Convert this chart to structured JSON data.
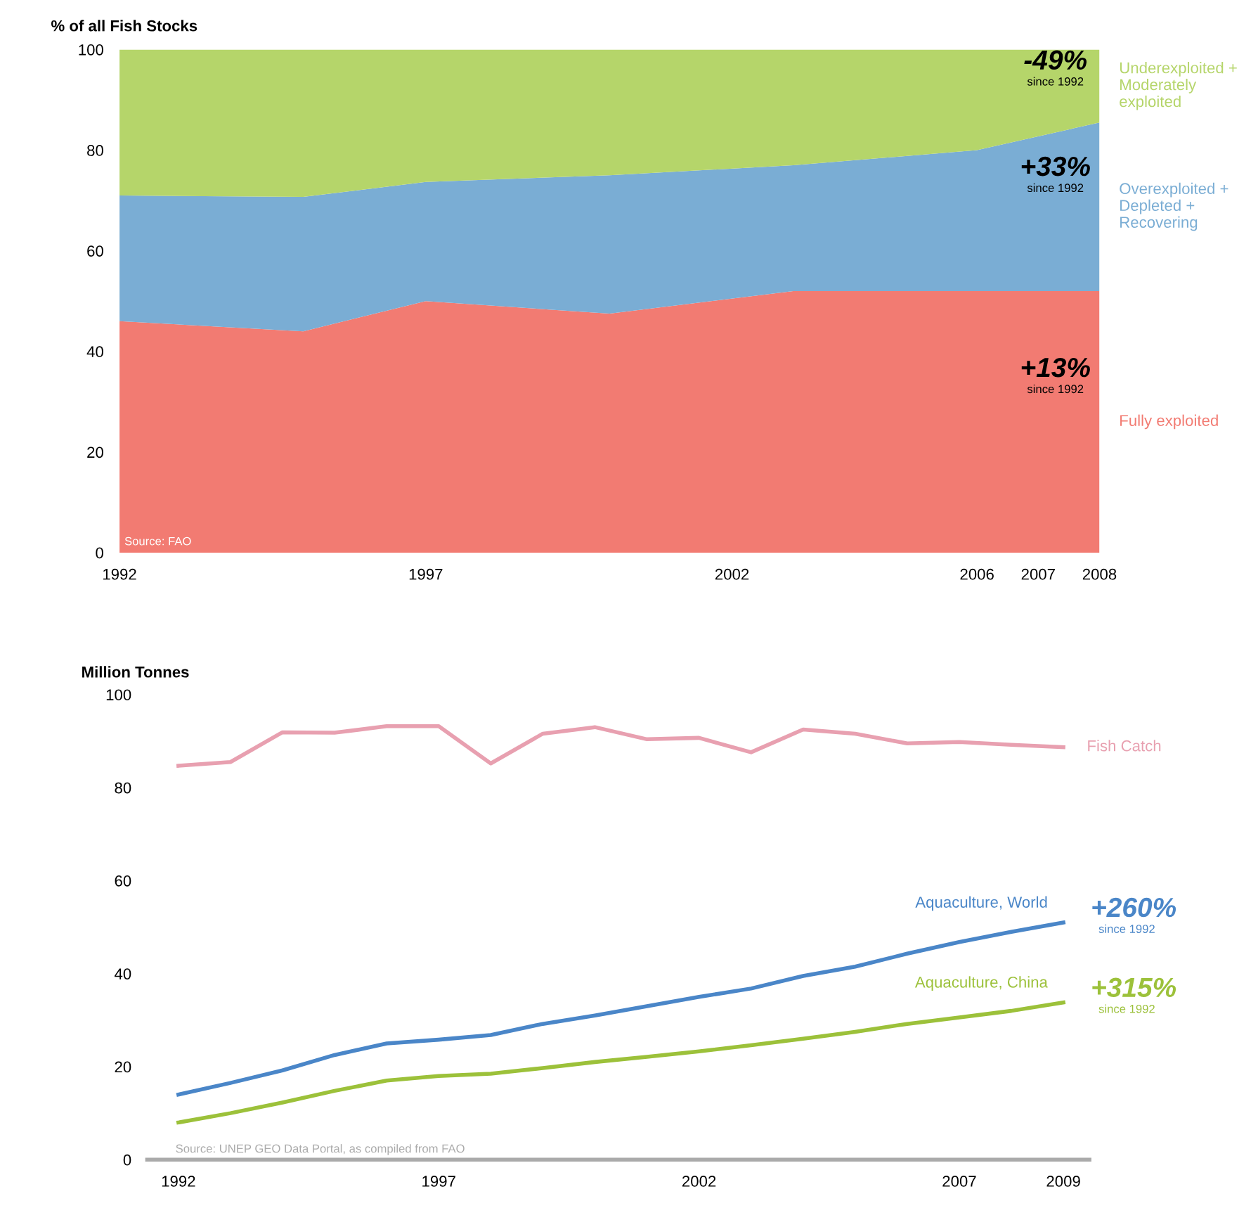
{
  "chart_data": [
    {
      "type": "area",
      "stacked": true,
      "ylabel": "% of all Fish Stocks",
      "x": [
        1992,
        1995,
        1997,
        2000,
        2003,
        2006,
        2008
      ],
      "series": [
        {
          "name": "Fully exploited",
          "color": "#f27b72",
          "values": [
            46,
            44,
            50,
            47.5,
            52,
            52,
            52
          ]
        },
        {
          "name": "Overexploited + Depleted + Recovering",
          "color": "#7aadd4",
          "values": [
            25,
            26.7,
            23.7,
            27.5,
            25,
            28,
            33.5
          ]
        },
        {
          "name": "Underexploited + Moderately exploited",
          "color": "#b5d56a",
          "values": [
            29,
            29.3,
            26.3,
            25,
            23,
            20,
            14.5
          ]
        }
      ],
      "xlim": [
        1992,
        2008
      ],
      "ylim": [
        0,
        100
      ],
      "xticks": [
        1992,
        1997,
        2002,
        2006,
        2007,
        2008
      ],
      "yticks": [
        0,
        20,
        40,
        60,
        80,
        100
      ],
      "grid": false,
      "legend": false,
      "annotations": [
        "-49%\nsince 1992",
        "+33%\nsince 1992",
        "+13%\nsince 1992",
        "Source: FAO"
      ]
    },
    {
      "type": "line",
      "ylabel": "Million Tonnes",
      "x": [
        1992,
        1993,
        1994,
        1995,
        1996,
        1997,
        1998,
        1999,
        2000,
        2001,
        2002,
        2003,
        2004,
        2005,
        2006,
        2007,
        2008,
        2009
      ],
      "series": [
        {
          "name": "Fish Catch",
          "color": "#e8a0b0",
          "values": [
            84.7,
            85.5,
            91.9,
            91.8,
            93.2,
            93.2,
            85.2,
            91.6,
            93,
            90.4,
            90.7,
            87.6,
            92.5,
            91.6,
            89.5,
            89.8,
            89.2,
            88.7
          ]
        },
        {
          "name": "Aquaculture, World",
          "color": "#4a86c8",
          "values": [
            14,
            16.5,
            19.2,
            22.5,
            25,
            25.8,
            26.8,
            29.2,
            31,
            33,
            35,
            36.8,
            39.5,
            41.5,
            44.3,
            46.8,
            49,
            51
          ]
        },
        {
          "name": "Aquaculture, China",
          "color": "#9cc13a",
          "values": [
            8,
            10,
            12.3,
            14.8,
            17,
            18,
            18.5,
            19.7,
            21,
            22.1,
            23.3,
            24.6,
            26,
            27.5,
            29.2,
            30.6,
            32,
            33.8
          ]
        }
      ],
      "xlim": [
        1991.4,
        2009.5
      ],
      "ylim": [
        0,
        100
      ],
      "xticks": [
        1992,
        1997,
        2002,
        2007,
        2009
      ],
      "yticks": [
        0,
        20,
        40,
        60,
        80,
        100
      ],
      "grid": false,
      "legend": false,
      "annotations": [
        "+260%\nsince 1992",
        "+315%\nsince 1992",
        "Source: UNEP GEO Data Portal, as compiled from FAO"
      ]
    }
  ]
}
